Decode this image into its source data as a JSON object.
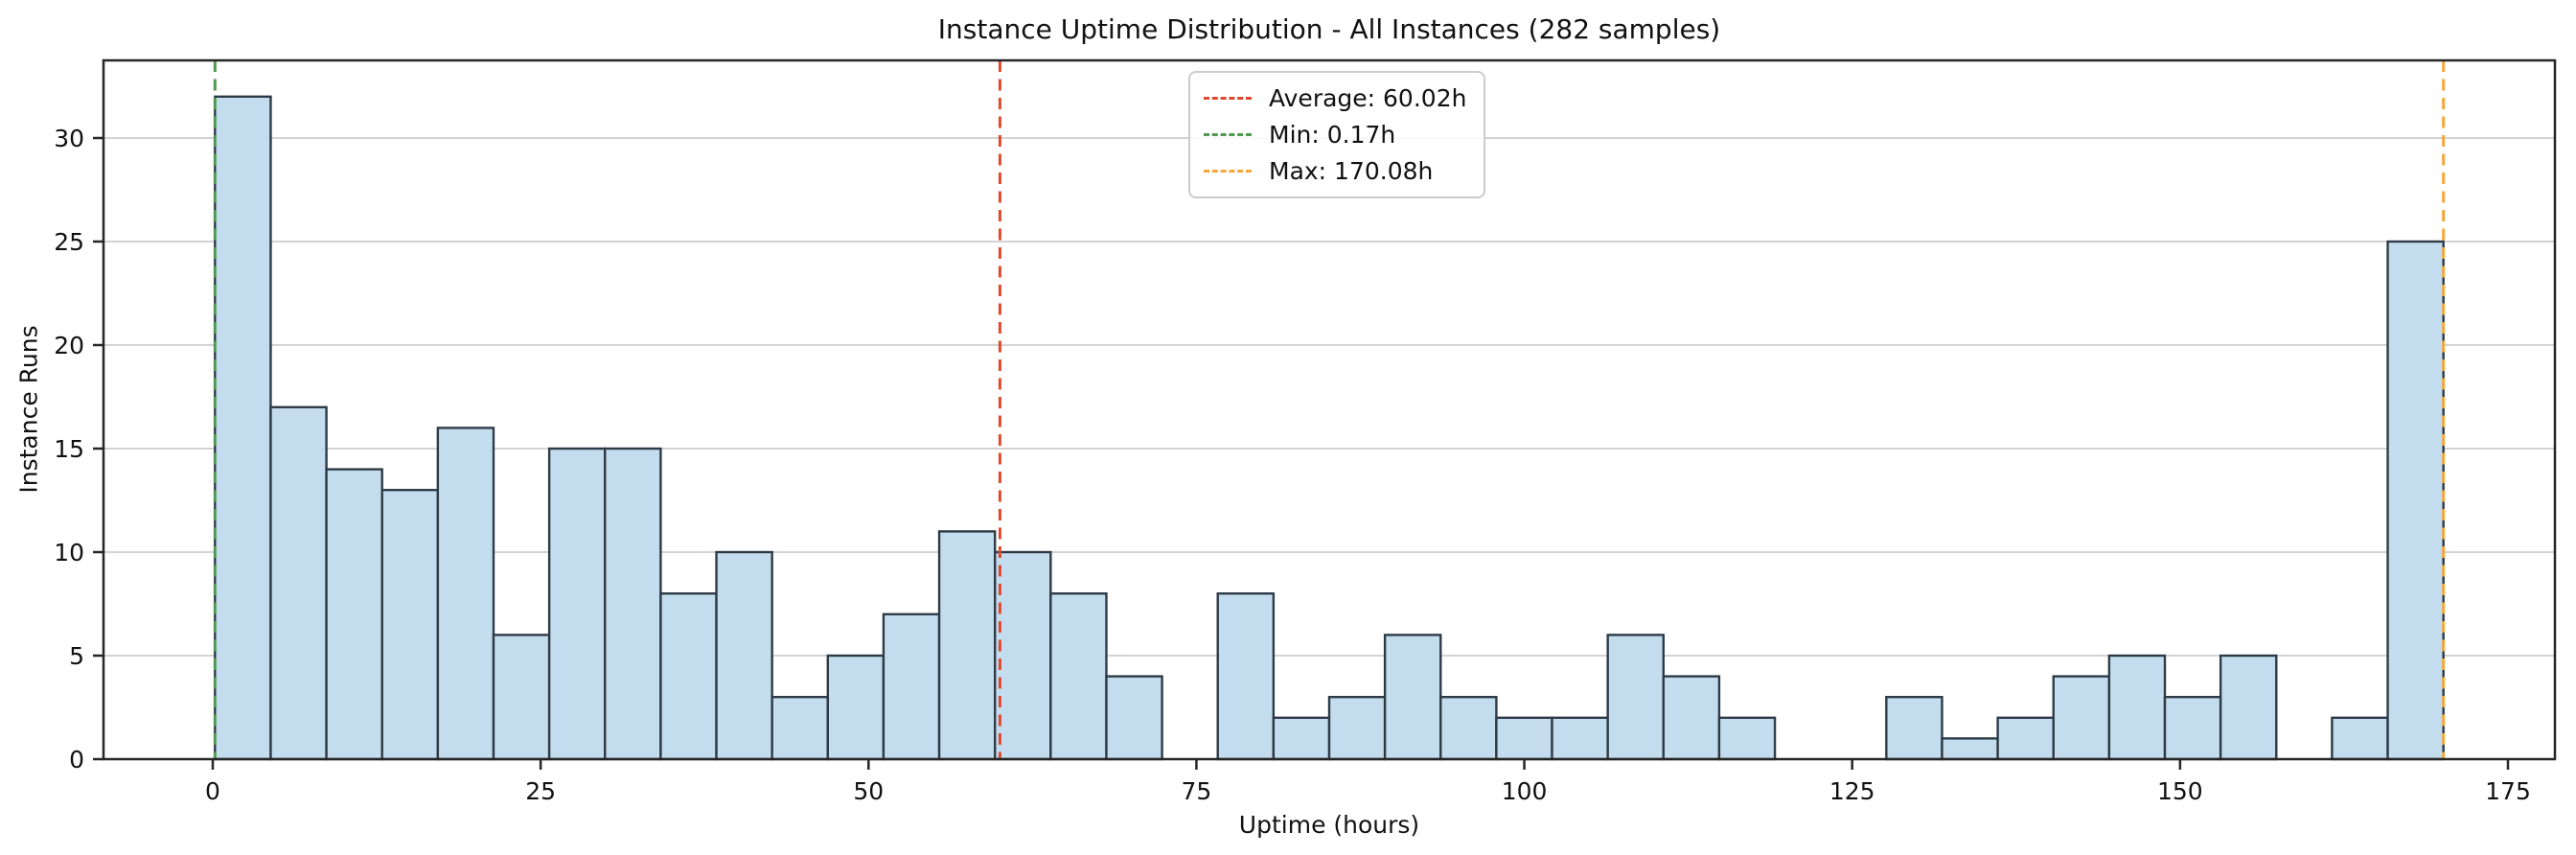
{
  "title": "Instance Uptime Distribution - All Instances (282 samples)",
  "axes": {
    "xlabel": "Uptime (hours)",
    "ylabel": "Instance Runs"
  },
  "legend": {
    "items": [
      {
        "name": "average-line",
        "label": "Average: 60.02h",
        "color": "#e0492f"
      },
      {
        "name": "min-line",
        "label": "Min: 0.17h",
        "color": "#4f9950"
      },
      {
        "name": "max-line",
        "label": "Max: 170.08h",
        "color": "#f5a73c"
      }
    ]
  },
  "chart_data": {
    "type": "bar",
    "subtype": "histogram",
    "title": "Instance Uptime Distribution - All Instances (282 samples)",
    "xlabel": "Uptime (hours)",
    "ylabel": "Instance Runs",
    "total_samples": 282,
    "bin_start": 0.17,
    "bin_width": 4.24775,
    "n_bins": 40,
    "counts": [
      32,
      17,
      14,
      13,
      16,
      6,
      15,
      15,
      8,
      10,
      3,
      5,
      7,
      11,
      10,
      8,
      4,
      0,
      8,
      2,
      3,
      6,
      3,
      2,
      2,
      6,
      4,
      2,
      0,
      0,
      3,
      1,
      2,
      4,
      5,
      3,
      5,
      0,
      2,
      25
    ],
    "xticks": [
      0,
      25,
      50,
      75,
      100,
      125,
      150,
      175
    ],
    "yticks": [
      0,
      5,
      10,
      15,
      20,
      25,
      30
    ],
    "xlim": [
      -8.33,
      178.58
    ],
    "ylim": [
      0,
      33.75
    ],
    "grid": "y",
    "legend_position": "upper center-right",
    "vlines": [
      {
        "name": "average",
        "x": 60.02,
        "color": "#e0492f"
      },
      {
        "name": "min",
        "x": 0.17,
        "color": "#4f9950"
      },
      {
        "name": "max",
        "x": 170.08,
        "color": "#f5a73c"
      }
    ],
    "colors": {
      "bar_fill": "#c3ddee",
      "bar_edge": "#2e3b47",
      "grid_line": "#cdcdcd",
      "spine": "#262626",
      "text": "#111111"
    }
  }
}
